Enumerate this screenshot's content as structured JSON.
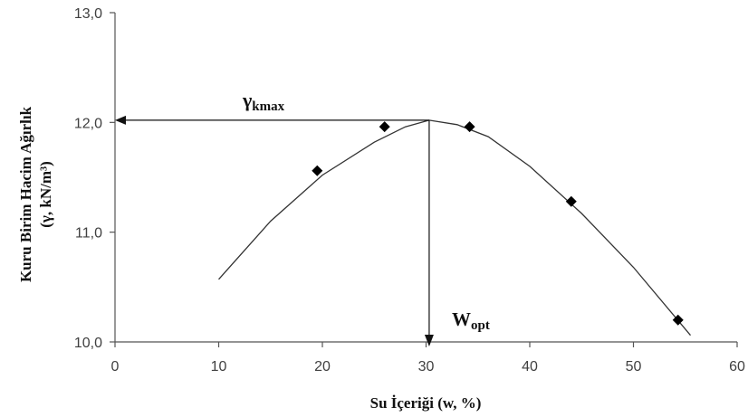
{
  "chart_data": {
    "type": "scatter",
    "title": "",
    "xlabel": "Su İçeriği (w, %)",
    "ylabel_line1": "Kuru Birim Hacim Ağırlık",
    "ylabel_line2": "(γ, kN/m³)",
    "xlim": [
      0,
      60
    ],
    "ylim": [
      10.0,
      13.0
    ],
    "x_ticks": [
      "0",
      "10",
      "20",
      "30",
      "40",
      "50",
      "60"
    ],
    "y_ticks": [
      "10,0",
      "11,0",
      "12,0",
      "13,0"
    ],
    "grid": false,
    "legend": "none",
    "colors": {
      "marker": "#000000",
      "line": "#333333",
      "axis": "#555555",
      "text": "#111111"
    },
    "series": [
      {
        "points": [
          {
            "x": 19.5,
            "y": 11.56
          },
          {
            "x": 26.0,
            "y": 11.96
          },
          {
            "x": 34.2,
            "y": 11.96
          },
          {
            "x": 44.0,
            "y": 11.28
          },
          {
            "x": 54.3,
            "y": 10.2
          }
        ]
      }
    ],
    "fit_curve": [
      {
        "x": 10.0,
        "y": 10.57
      },
      {
        "x": 15.0,
        "y": 11.1
      },
      {
        "x": 20.0,
        "y": 11.52
      },
      {
        "x": 25.0,
        "y": 11.82
      },
      {
        "x": 28.0,
        "y": 11.96
      },
      {
        "x": 30.3,
        "y": 12.02
      },
      {
        "x": 33.0,
        "y": 11.98
      },
      {
        "x": 36.0,
        "y": 11.87
      },
      {
        "x": 40.0,
        "y": 11.6
      },
      {
        "x": 45.0,
        "y": 11.17
      },
      {
        "x": 50.0,
        "y": 10.68
      },
      {
        "x": 55.5,
        "y": 10.06
      }
    ],
    "annotations": {
      "gamma_kmax": {
        "main": "γ",
        "sub": "kmax",
        "value_y": 12.02
      },
      "w_opt": {
        "main": "W",
        "sub": "opt",
        "value_x": 30.3
      }
    }
  }
}
